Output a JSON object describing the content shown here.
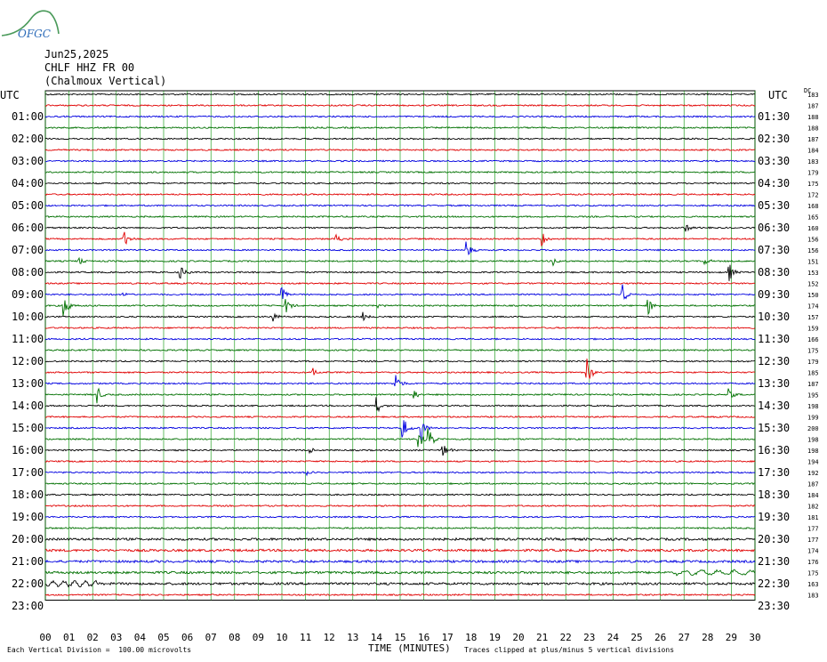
{
  "header": {
    "logo_text": "OFGC",
    "date": "Jun25,2025",
    "station": "CHLF HHZ FR 00",
    "location": "(Chalmoux Vertical)"
  },
  "axes": {
    "left_label": "UTC",
    "right_label": "UTC",
    "dc_label": "DC",
    "xlabel": "TIME (MINUTES)"
  },
  "footer": {
    "scale": "Each Vertical Division =  100.00 microvolts",
    "clip": "Traces clipped at plus/minus 5 vertical divisions"
  },
  "colors": {
    "trace_cycle": [
      "#000000",
      "#e00000",
      "#0000e0",
      "#007000"
    ],
    "grid": "#009000"
  },
  "chart_data": {
    "type": "helicorder",
    "x_ticks": [
      "00",
      "01",
      "02",
      "03",
      "04",
      "05",
      "06",
      "07",
      "08",
      "09",
      "10",
      "11",
      "12",
      "13",
      "14",
      "15",
      "16",
      "17",
      "18",
      "19",
      "20",
      "21",
      "22",
      "23",
      "24",
      "25",
      "26",
      "27",
      "28",
      "29",
      "30"
    ],
    "xlim": [
      0,
      30
    ],
    "row_minutes": 30,
    "left_hours": [
      "01:00",
      "02:00",
      "03:00",
      "04:00",
      "05:00",
      "06:00",
      "07:00",
      "08:00",
      "09:00",
      "10:00",
      "11:00",
      "12:00",
      "13:00",
      "14:00",
      "15:00",
      "16:00",
      "17:00",
      "18:00",
      "19:00",
      "20:00",
      "21:00",
      "22:00",
      "23:00"
    ],
    "right_hours": [
      "01:30",
      "02:30",
      "03:30",
      "04:30",
      "05:30",
      "06:30",
      "07:30",
      "08:30",
      "09:30",
      "10:30",
      "11:30",
      "12:30",
      "13:30",
      "14:30",
      "15:30",
      "16:30",
      "17:30",
      "18:30",
      "19:30",
      "20:30",
      "21:30",
      "22:30",
      "23:30"
    ],
    "dc_offsets": [
      183,
      187,
      188,
      188,
      187,
      184,
      183,
      179,
      175,
      172,
      168,
      165,
      160,
      156,
      156,
      151,
      153,
      152,
      150,
      174,
      157,
      159,
      166,
      175,
      179,
      185,
      187,
      195,
      198,
      199,
      200,
      198,
      198,
      194,
      192,
      187,
      184,
      182,
      181,
      177,
      177,
      174,
      176,
      175,
      163,
      183
    ],
    "events": [
      {
        "row": 13,
        "minute": 3.3,
        "amp": 1.3
      },
      {
        "row": 13,
        "minute": 12.3,
        "amp": 0.5
      },
      {
        "row": 13,
        "minute": 21.0,
        "amp": 1.0
      },
      {
        "row": 12,
        "minute": 27.1,
        "amp": 0.6
      },
      {
        "row": 14,
        "minute": 17.8,
        "amp": 1.4
      },
      {
        "row": 15,
        "minute": 1.4,
        "amp": 0.6
      },
      {
        "row": 15,
        "minute": 21.5,
        "amp": 0.7
      },
      {
        "row": 15,
        "minute": 27.9,
        "amp": 0.5
      },
      {
        "row": 16,
        "minute": 5.7,
        "amp": 0.9
      },
      {
        "row": 16,
        "minute": 28.9,
        "amp": 1.2
      },
      {
        "row": 18,
        "minute": 3.3,
        "amp": 0.4
      },
      {
        "row": 18,
        "minute": 10.0,
        "amp": 1.0
      },
      {
        "row": 18,
        "minute": 24.4,
        "amp": 1.4
      },
      {
        "row": 19,
        "minute": 0.8,
        "amp": 1.6
      },
      {
        "row": 19,
        "minute": 10.1,
        "amp": 1.8
      },
      {
        "row": 19,
        "minute": 25.5,
        "amp": 1.2
      },
      {
        "row": 19,
        "minute": 14.0,
        "amp": 0.4
      },
      {
        "row": 20,
        "minute": 9.6,
        "amp": 0.9
      },
      {
        "row": 20,
        "minute": 13.4,
        "amp": 0.7
      },
      {
        "row": 25,
        "minute": 11.3,
        "amp": 0.6
      },
      {
        "row": 25,
        "minute": 22.9,
        "amp": 1.9
      },
      {
        "row": 26,
        "minute": 14.8,
        "amp": 1.5
      },
      {
        "row": 27,
        "minute": 2.2,
        "amp": 1.3
      },
      {
        "row": 27,
        "minute": 15.6,
        "amp": 0.8
      },
      {
        "row": 27,
        "minute": 28.9,
        "amp": 0.7
      },
      {
        "row": 28,
        "minute": 14.0,
        "amp": 1.2
      },
      {
        "row": 30,
        "minute": 15.1,
        "amp": 1.8
      },
      {
        "row": 30,
        "minute": 15.9,
        "amp": 1.5
      },
      {
        "row": 31,
        "minute": 16.2,
        "amp": 2.0
      },
      {
        "row": 31,
        "minute": 15.8,
        "amp": 1.6
      },
      {
        "row": 32,
        "minute": 16.8,
        "amp": 1.2
      },
      {
        "row": 32,
        "minute": 11.2,
        "amp": 0.4
      },
      {
        "row": 34,
        "minute": 11.1,
        "amp": 0.3
      }
    ]
  }
}
